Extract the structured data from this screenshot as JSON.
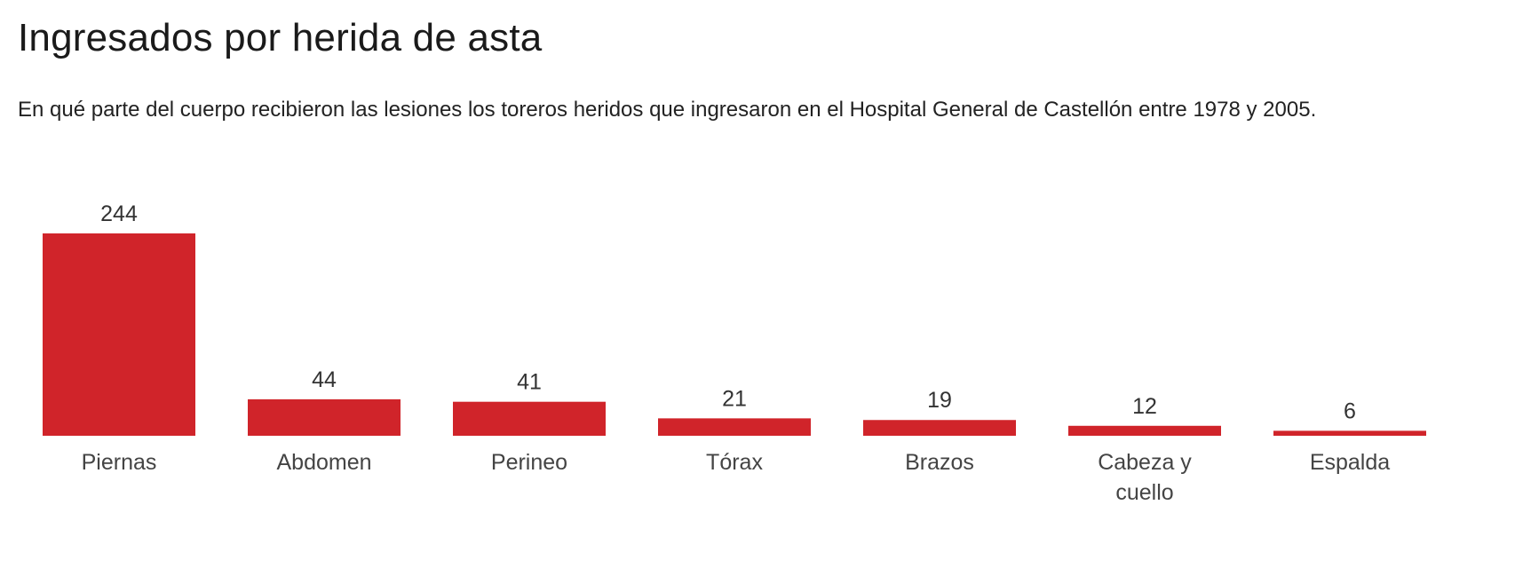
{
  "title": "Ingresados por herida de asta",
  "subtitle": "En qué parte del cuerpo recibieron las lesiones los toreros heridos que ingresaron en el Hospital General de Castellón entre 1978 y 2005.",
  "colors": {
    "bar": "#d0242a"
  },
  "chart_data": {
    "type": "bar",
    "title": "Ingresados por herida de asta",
    "subtitle": "En qué parte del cuerpo recibieron las lesiones los toreros heridos que ingresaron en el Hospital General de Castellón entre 1978 y 2005.",
    "categories": [
      [
        "Piernas"
      ],
      [
        "Abdomen"
      ],
      [
        "Perineo"
      ],
      [
        "Tórax"
      ],
      [
        "Brazos"
      ],
      [
        "Cabeza y",
        "cuello"
      ],
      [
        "Espalda"
      ]
    ],
    "values": [
      244,
      44,
      41,
      21,
      19,
      12,
      6
    ],
    "data_labels": [
      "244",
      "44",
      "41",
      "21",
      "19",
      "12",
      "6"
    ],
    "xlabel": "",
    "ylabel": "",
    "ylim": [
      0,
      244
    ],
    "grid": false,
    "legend": "none"
  }
}
